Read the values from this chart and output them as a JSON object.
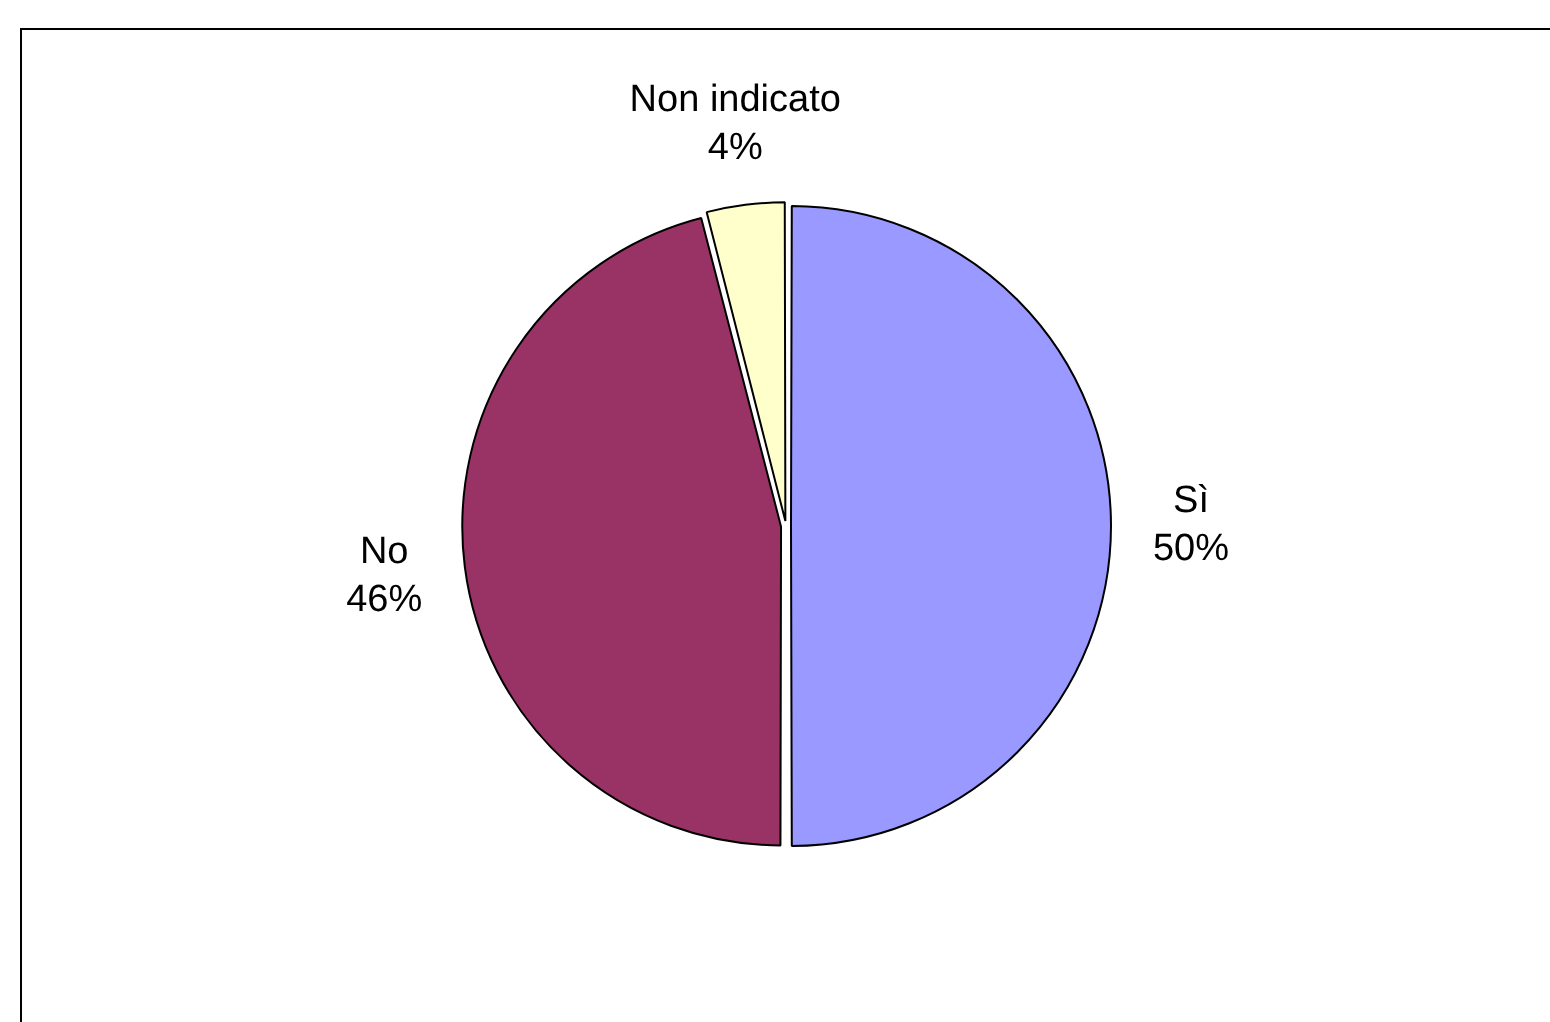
{
  "chart_data": {
    "type": "pie",
    "categories": [
      "Sì",
      "No",
      "Non indicato"
    ],
    "values": [
      50,
      46,
      4
    ],
    "colors": [
      "#9999ff",
      "#993366",
      "#ffffcc"
    ],
    "value_labels": [
      "50%",
      "46%",
      "4%"
    ],
    "legend": false
  }
}
